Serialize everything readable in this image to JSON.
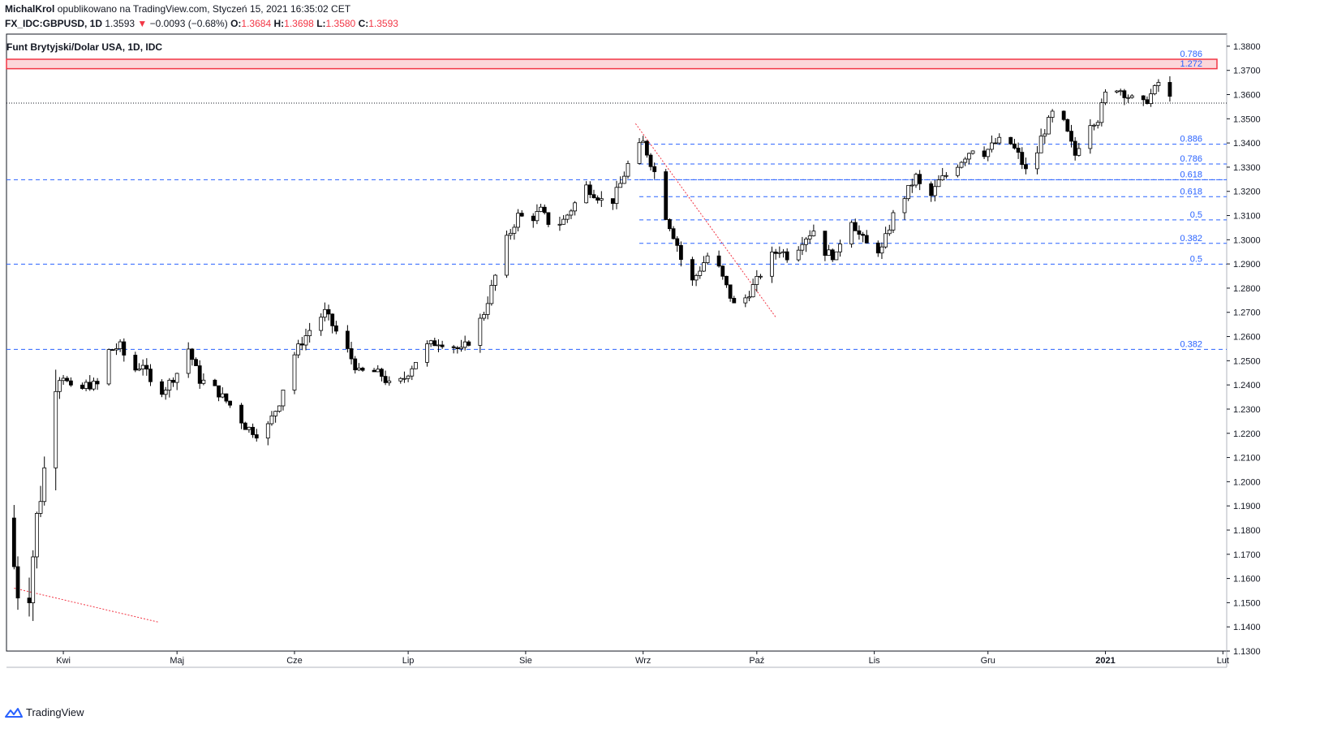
{
  "header": {
    "author": "MichalKrol",
    "published_text": "opublikowano na TradingView.com, Styczeń 15, 2021 16:35:02 CET",
    "symbol": "FX_IDC:GBPUSD, 1D",
    "last": "1.3593",
    "arrow": "▼",
    "change": "−0.0093 (−0.68%)",
    "o_label": "O:",
    "o_value": "1.3684",
    "h_label": "H:",
    "h_value": "1.3698",
    "l_label": "L:",
    "l_value": "1.3580",
    "c_label": "C:",
    "c_value": "1.3593"
  },
  "footer": {
    "brand": "TradingView",
    "logo_icon": "tradingview-logo-icon"
  },
  "colors": {
    "fib": "#2962ff",
    "resistance": "#f23645",
    "candle_dark": "#000000",
    "candle_light": "#ffffff"
  },
  "chart_data": {
    "type": "candlestick",
    "title": "Funt Brytyjski/Dolar USA, 1D, IDC",
    "ylim": [
      1.13,
      1.385
    ],
    "y_ticks": [
      1.13,
      1.14,
      1.15,
      1.16,
      1.17,
      1.18,
      1.19,
      1.2,
      1.21,
      1.22,
      1.23,
      1.24,
      1.25,
      1.26,
      1.27,
      1.28,
      1.29,
      1.3,
      1.31,
      1.32,
      1.33,
      1.34,
      1.35,
      1.36,
      1.37,
      1.38
    ],
    "y_tick_labels": [
      "1.1300",
      "1.1400",
      "1.1500",
      "1.1600",
      "1.1700",
      "1.1800",
      "1.1900",
      "1.2000",
      "1.2100",
      "1.2200",
      "1.2300",
      "1.2400",
      "1.2500",
      "1.2600",
      "1.2700",
      "1.2800",
      "1.2900",
      "1.3000",
      "1.3100",
      "1.3200",
      "1.3300",
      "1.3400",
      "1.3500",
      "1.3600",
      "1.3700",
      "1.3800"
    ],
    "x_labels": [
      {
        "label": "Kwi",
        "day": 13
      },
      {
        "label": "Maj",
        "day": 43
      },
      {
        "label": "Cze",
        "day": 74
      },
      {
        "label": "Lip",
        "day": 104
      },
      {
        "label": "Sie",
        "day": 135
      },
      {
        "label": "Wrz",
        "day": 166
      },
      {
        "label": "Paź",
        "day": 196
      },
      {
        "label": "Lis",
        "day": 227
      },
      {
        "label": "Gru",
        "day": 257
      },
      {
        "label": "2021",
        "day": 288
      },
      {
        "label": "Lut",
        "day": 319
      }
    ],
    "x_range_days": [
      -2,
      320
    ],
    "start_date": "2020-03-19",
    "series_anchors": [
      [
        0,
        1.165
      ],
      [
        2,
        1.145
      ],
      [
        4,
        1.155
      ],
      [
        6,
        1.185
      ],
      [
        8,
        1.205
      ],
      [
        10,
        1.242
      ],
      [
        13,
        1.244
      ],
      [
        16,
        1.235
      ],
      [
        19,
        1.24
      ],
      [
        22,
        1.24
      ],
      [
        25,
        1.254
      ],
      [
        28,
        1.256
      ],
      [
        31,
        1.245
      ],
      [
        34,
        1.249
      ],
      [
        37,
        1.236
      ],
      [
        40,
        1.239
      ],
      [
        43,
        1.245
      ],
      [
        46,
        1.255
      ],
      [
        49,
        1.242
      ],
      [
        52,
        1.24
      ],
      [
        55,
        1.235
      ],
      [
        58,
        1.23
      ],
      [
        61,
        1.223
      ],
      [
        64,
        1.22
      ],
      [
        67,
        1.223
      ],
      [
        70,
        1.233
      ],
      [
        73,
        1.25
      ],
      [
        76,
        1.258
      ],
      [
        79,
        1.265
      ],
      [
        82,
        1.27
      ],
      [
        85,
        1.262
      ],
      [
        88,
        1.254
      ],
      [
        91,
        1.245
      ],
      [
        94,
        1.246
      ],
      [
        97,
        1.244
      ],
      [
        100,
        1.238
      ],
      [
        103,
        1.243
      ],
      [
        106,
        1.25
      ],
      [
        109,
        1.256
      ],
      [
        112,
        1.258
      ],
      [
        115,
        1.257
      ],
      [
        118,
        1.254
      ],
      [
        121,
        1.26
      ],
      [
        124,
        1.27
      ],
      [
        127,
        1.285
      ],
      [
        130,
        1.3
      ],
      [
        133,
        1.31
      ],
      [
        136,
        1.308
      ],
      [
        139,
        1.312
      ],
      [
        142,
        1.305
      ],
      [
        145,
        1.308
      ],
      [
        148,
        1.315
      ],
      [
        151,
        1.322
      ],
      [
        154,
        1.318
      ],
      [
        157,
        1.313
      ],
      [
        160,
        1.323
      ],
      [
        163,
        1.335
      ],
      [
        166,
        1.34
      ],
      [
        169,
        1.328
      ],
      [
        172,
        1.31
      ],
      [
        175,
        1.298
      ],
      [
        178,
        1.28
      ],
      [
        181,
        1.288
      ],
      [
        184,
        1.296
      ],
      [
        187,
        1.284
      ],
      [
        190,
        1.273
      ],
      [
        193,
        1.276
      ],
      [
        196,
        1.283
      ],
      [
        199,
        1.292
      ],
      [
        202,
        1.296
      ],
      [
        205,
        1.292
      ],
      [
        208,
        1.3
      ],
      [
        211,
        1.304
      ],
      [
        214,
        1.295
      ],
      [
        217,
        1.293
      ],
      [
        220,
        1.312
      ],
      [
        223,
        1.302
      ],
      [
        226,
        1.296
      ],
      [
        229,
        1.296
      ],
      [
        232,
        1.31
      ],
      [
        235,
        1.318
      ],
      [
        238,
        1.326
      ],
      [
        241,
        1.315
      ],
      [
        244,
        1.324
      ],
      [
        247,
        1.328
      ],
      [
        250,
        1.333
      ],
      [
        253,
        1.338
      ],
      [
        256,
        1.336
      ],
      [
        259,
        1.34
      ],
      [
        262,
        1.342
      ],
      [
        265,
        1.335
      ],
      [
        268,
        1.325
      ],
      [
        271,
        1.342
      ],
      [
        274,
        1.352
      ],
      [
        277,
        1.348
      ],
      [
        280,
        1.335
      ],
      [
        283,
        1.348
      ],
      [
        286,
        1.35
      ],
      [
        289,
        1.365
      ],
      [
        292,
        1.362
      ],
      [
        295,
        1.358
      ],
      [
        298,
        1.356
      ],
      [
        301,
        1.362
      ],
      [
        303,
        1.368
      ],
      [
        305,
        1.3593
      ]
    ],
    "horizontal_lines": [
      {
        "level": 1.3565,
        "style": "dotted",
        "label": ""
      },
      {
        "level": 1.3248,
        "label": "",
        "from_day": -2
      },
      {
        "level": 1.2899,
        "label": "0.5",
        "from_day": -2
      },
      {
        "level": 1.2547,
        "label": "0.382",
        "from_day": -2
      },
      {
        "level": 1.3395,
        "label": "0.886",
        "from_day": 165
      },
      {
        "level": 1.3313,
        "label": "0.786",
        "from_day": 165
      },
      {
        "level": 1.3248,
        "label": "0.618",
        "from_day": 165
      },
      {
        "level": 1.3178,
        "label": "0.618",
        "from_day": 165
      },
      {
        "level": 1.3082,
        "label": "0.5",
        "from_day": 165
      },
      {
        "level": 1.2985,
        "label": "0.382",
        "from_day": 165
      }
    ],
    "resistance_zone": {
      "low": 1.3707,
      "high": 1.3746,
      "label_top": "0.786",
      "label_bottom": "1.272"
    },
    "trendlines": [
      {
        "from": [
          0,
          1.156
        ],
        "to": [
          38,
          1.142
        ]
      },
      {
        "from": [
          164,
          1.348
        ],
        "to": [
          201,
          1.268
        ]
      }
    ],
    "last_price": 1.3593
  }
}
